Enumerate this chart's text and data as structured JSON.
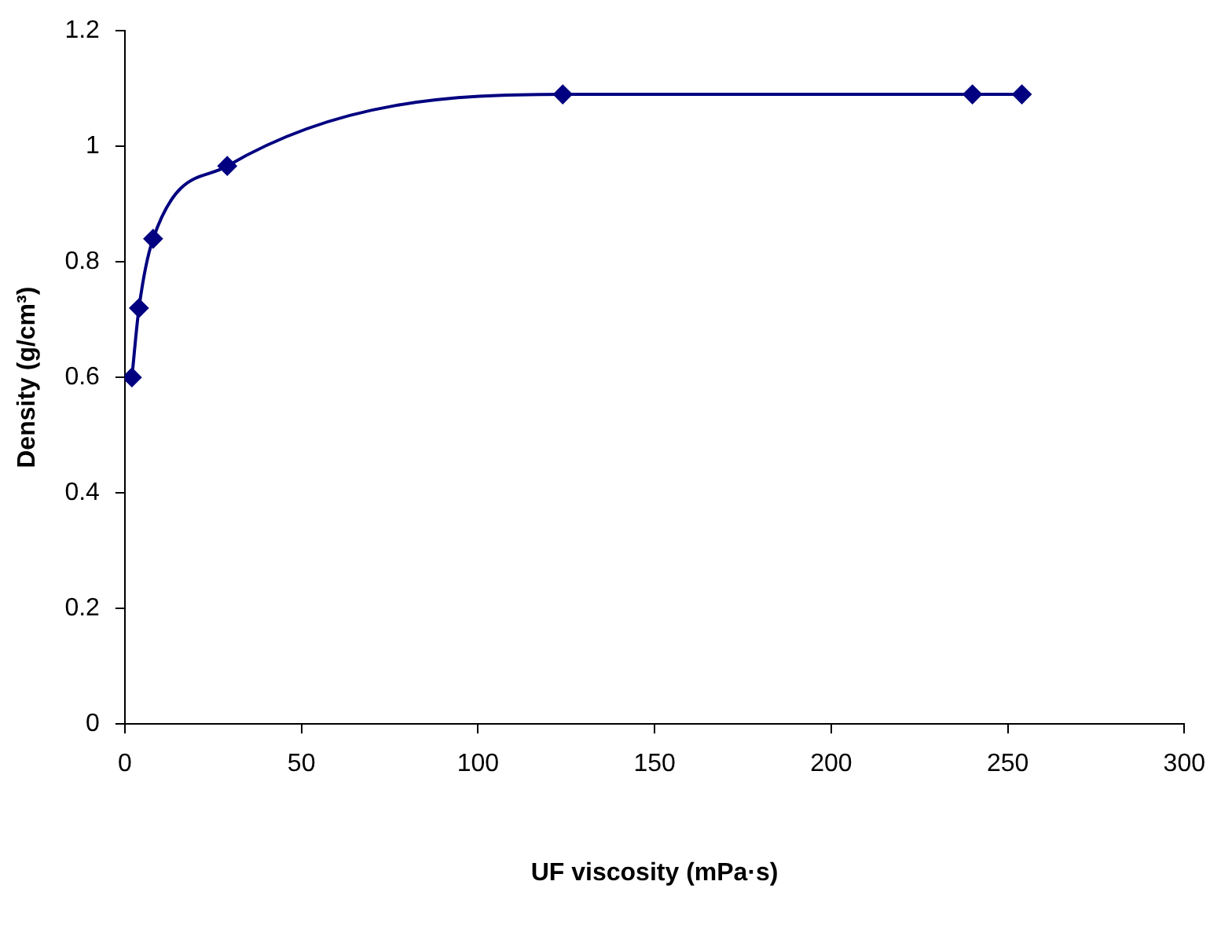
{
  "chart_data": {
    "type": "line",
    "xlabel": "UF viscosity (mPa·s)",
    "ylabel": "Density (g/cm³)",
    "x": [
      2,
      4,
      8,
      29,
      124,
      240,
      254
    ],
    "series": [
      {
        "color": "#000080",
        "values": [
          0.6,
          0.72,
          0.84,
          0.966,
          1.09,
          1.09,
          1.09
        ]
      }
    ],
    "xlim": [
      0,
      300
    ],
    "xticks": [
      0,
      50,
      100,
      150,
      200,
      250,
      300
    ],
    "ylim": [
      0,
      1.2
    ],
    "yticks": [
      0,
      0.2,
      0.4,
      0.6,
      0.8,
      1,
      1.2
    ],
    "grid": false,
    "legend": false,
    "marker": "diamond",
    "line_style": "solid"
  }
}
